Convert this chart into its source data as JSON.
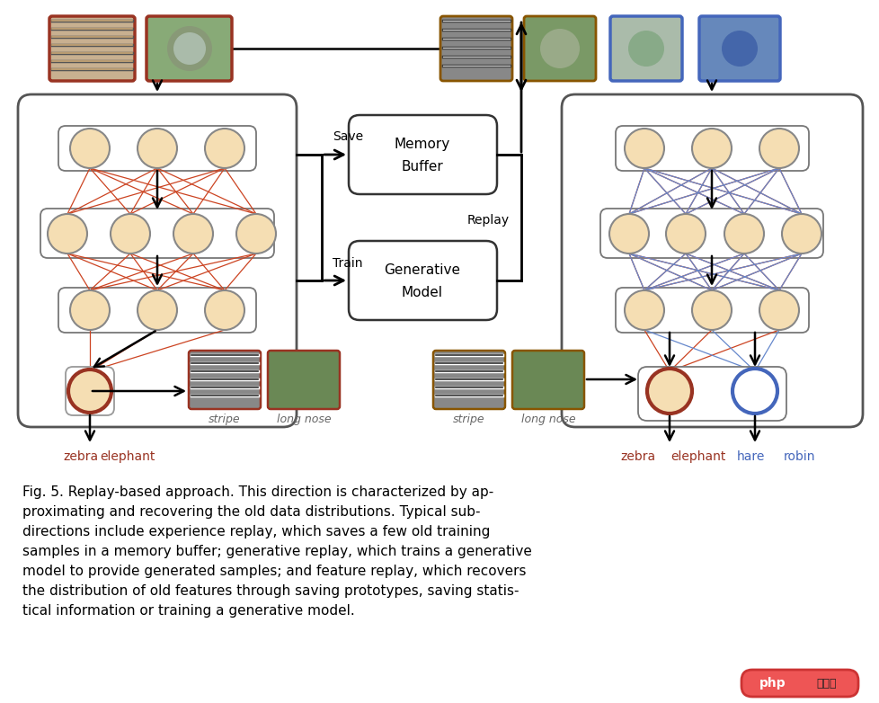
{
  "bg_color": "#ffffff",
  "node_fill": "#f5deb3",
  "node_edge_dark": "#888888",
  "node_edge_red": "#993322",
  "node_edge_blue": "#4466bb",
  "red_line_color": "#cc4422",
  "blue_line_color": "#6688cc",
  "caption_lines": [
    "Fig. 5. Replay-based approach. This direction is characterized by ap-",
    "proximating and recovering the old data distributions. Typical sub-",
    "directions include experience replay, which saves a few old training",
    "samples in a memory buffer; generative replay, which trains a generative",
    "model to provide generated samples; and feature replay, which recovers",
    "the distribution of old features through saving prototypes, saving statis-",
    "tical information or training a generative model."
  ]
}
